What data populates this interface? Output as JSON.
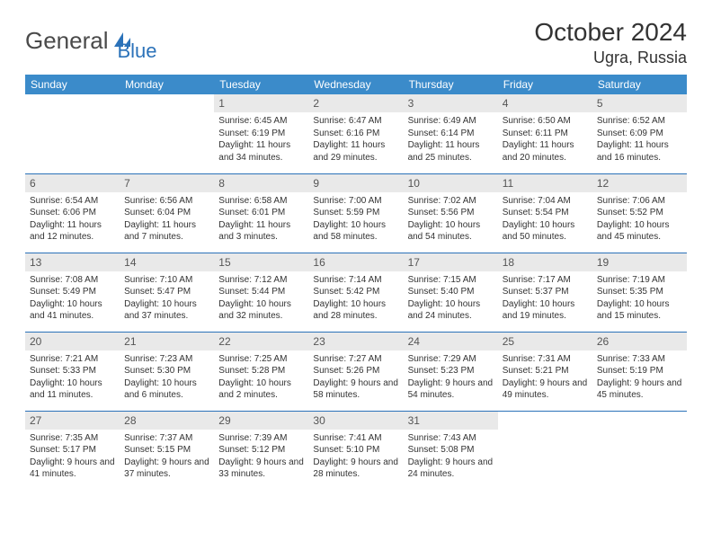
{
  "logo": {
    "word1": "General",
    "word2": "Blue",
    "accent_color": "#2b72b9"
  },
  "title": "October 2024",
  "location": "Ugra, Russia",
  "header_bg": "#3b8bca",
  "header_text": "#ffffff",
  "daynum_bg": "#e9e9e9",
  "border_color": "#2b72b9",
  "weekdays": [
    "Sunday",
    "Monday",
    "Tuesday",
    "Wednesday",
    "Thursday",
    "Friday",
    "Saturday"
  ],
  "weeks": [
    [
      null,
      null,
      {
        "day": "1",
        "sunrise": "Sunrise: 6:45 AM",
        "sunset": "Sunset: 6:19 PM",
        "daylight": "Daylight: 11 hours and 34 minutes."
      },
      {
        "day": "2",
        "sunrise": "Sunrise: 6:47 AM",
        "sunset": "Sunset: 6:16 PM",
        "daylight": "Daylight: 11 hours and 29 minutes."
      },
      {
        "day": "3",
        "sunrise": "Sunrise: 6:49 AM",
        "sunset": "Sunset: 6:14 PM",
        "daylight": "Daylight: 11 hours and 25 minutes."
      },
      {
        "day": "4",
        "sunrise": "Sunrise: 6:50 AM",
        "sunset": "Sunset: 6:11 PM",
        "daylight": "Daylight: 11 hours and 20 minutes."
      },
      {
        "day": "5",
        "sunrise": "Sunrise: 6:52 AM",
        "sunset": "Sunset: 6:09 PM",
        "daylight": "Daylight: 11 hours and 16 minutes."
      }
    ],
    [
      {
        "day": "6",
        "sunrise": "Sunrise: 6:54 AM",
        "sunset": "Sunset: 6:06 PM",
        "daylight": "Daylight: 11 hours and 12 minutes."
      },
      {
        "day": "7",
        "sunrise": "Sunrise: 6:56 AM",
        "sunset": "Sunset: 6:04 PM",
        "daylight": "Daylight: 11 hours and 7 minutes."
      },
      {
        "day": "8",
        "sunrise": "Sunrise: 6:58 AM",
        "sunset": "Sunset: 6:01 PM",
        "daylight": "Daylight: 11 hours and 3 minutes."
      },
      {
        "day": "9",
        "sunrise": "Sunrise: 7:00 AM",
        "sunset": "Sunset: 5:59 PM",
        "daylight": "Daylight: 10 hours and 58 minutes."
      },
      {
        "day": "10",
        "sunrise": "Sunrise: 7:02 AM",
        "sunset": "Sunset: 5:56 PM",
        "daylight": "Daylight: 10 hours and 54 minutes."
      },
      {
        "day": "11",
        "sunrise": "Sunrise: 7:04 AM",
        "sunset": "Sunset: 5:54 PM",
        "daylight": "Daylight: 10 hours and 50 minutes."
      },
      {
        "day": "12",
        "sunrise": "Sunrise: 7:06 AM",
        "sunset": "Sunset: 5:52 PM",
        "daylight": "Daylight: 10 hours and 45 minutes."
      }
    ],
    [
      {
        "day": "13",
        "sunrise": "Sunrise: 7:08 AM",
        "sunset": "Sunset: 5:49 PM",
        "daylight": "Daylight: 10 hours and 41 minutes."
      },
      {
        "day": "14",
        "sunrise": "Sunrise: 7:10 AM",
        "sunset": "Sunset: 5:47 PM",
        "daylight": "Daylight: 10 hours and 37 minutes."
      },
      {
        "day": "15",
        "sunrise": "Sunrise: 7:12 AM",
        "sunset": "Sunset: 5:44 PM",
        "daylight": "Daylight: 10 hours and 32 minutes."
      },
      {
        "day": "16",
        "sunrise": "Sunrise: 7:14 AM",
        "sunset": "Sunset: 5:42 PM",
        "daylight": "Daylight: 10 hours and 28 minutes."
      },
      {
        "day": "17",
        "sunrise": "Sunrise: 7:15 AM",
        "sunset": "Sunset: 5:40 PM",
        "daylight": "Daylight: 10 hours and 24 minutes."
      },
      {
        "day": "18",
        "sunrise": "Sunrise: 7:17 AM",
        "sunset": "Sunset: 5:37 PM",
        "daylight": "Daylight: 10 hours and 19 minutes."
      },
      {
        "day": "19",
        "sunrise": "Sunrise: 7:19 AM",
        "sunset": "Sunset: 5:35 PM",
        "daylight": "Daylight: 10 hours and 15 minutes."
      }
    ],
    [
      {
        "day": "20",
        "sunrise": "Sunrise: 7:21 AM",
        "sunset": "Sunset: 5:33 PM",
        "daylight": "Daylight: 10 hours and 11 minutes."
      },
      {
        "day": "21",
        "sunrise": "Sunrise: 7:23 AM",
        "sunset": "Sunset: 5:30 PM",
        "daylight": "Daylight: 10 hours and 6 minutes."
      },
      {
        "day": "22",
        "sunrise": "Sunrise: 7:25 AM",
        "sunset": "Sunset: 5:28 PM",
        "daylight": "Daylight: 10 hours and 2 minutes."
      },
      {
        "day": "23",
        "sunrise": "Sunrise: 7:27 AM",
        "sunset": "Sunset: 5:26 PM",
        "daylight": "Daylight: 9 hours and 58 minutes."
      },
      {
        "day": "24",
        "sunrise": "Sunrise: 7:29 AM",
        "sunset": "Sunset: 5:23 PM",
        "daylight": "Daylight: 9 hours and 54 minutes."
      },
      {
        "day": "25",
        "sunrise": "Sunrise: 7:31 AM",
        "sunset": "Sunset: 5:21 PM",
        "daylight": "Daylight: 9 hours and 49 minutes."
      },
      {
        "day": "26",
        "sunrise": "Sunrise: 7:33 AM",
        "sunset": "Sunset: 5:19 PM",
        "daylight": "Daylight: 9 hours and 45 minutes."
      }
    ],
    [
      {
        "day": "27",
        "sunrise": "Sunrise: 7:35 AM",
        "sunset": "Sunset: 5:17 PM",
        "daylight": "Daylight: 9 hours and 41 minutes."
      },
      {
        "day": "28",
        "sunrise": "Sunrise: 7:37 AM",
        "sunset": "Sunset: 5:15 PM",
        "daylight": "Daylight: 9 hours and 37 minutes."
      },
      {
        "day": "29",
        "sunrise": "Sunrise: 7:39 AM",
        "sunset": "Sunset: 5:12 PM",
        "daylight": "Daylight: 9 hours and 33 minutes."
      },
      {
        "day": "30",
        "sunrise": "Sunrise: 7:41 AM",
        "sunset": "Sunset: 5:10 PM",
        "daylight": "Daylight: 9 hours and 28 minutes."
      },
      {
        "day": "31",
        "sunrise": "Sunrise: 7:43 AM",
        "sunset": "Sunset: 5:08 PM",
        "daylight": "Daylight: 9 hours and 24 minutes."
      },
      null,
      null
    ]
  ]
}
